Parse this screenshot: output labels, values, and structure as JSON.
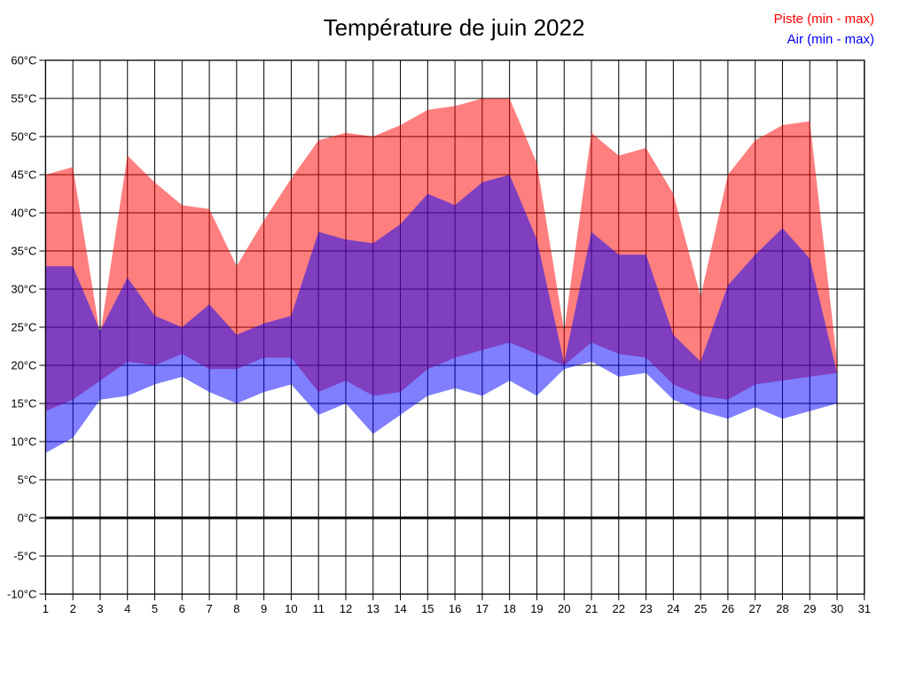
{
  "title": "Température de juin 2022",
  "legend": [
    {
      "label": "Piste (min - max)",
      "color": "#ff0000"
    },
    {
      "label": "Air (min - max)",
      "color": "#0000ff"
    }
  ],
  "chart_data": {
    "type": "area",
    "subtype": "min-max-range-bands",
    "x_label_unit": "day of month",
    "categories": [
      1,
      2,
      3,
      4,
      5,
      6,
      7,
      8,
      9,
      10,
      11,
      12,
      13,
      14,
      15,
      16,
      17,
      18,
      19,
      20,
      21,
      22,
      23,
      24,
      25,
      26,
      27,
      28,
      29,
      30,
      31
    ],
    "x_tick_labels": [
      "1",
      "2",
      "3",
      "4",
      "5",
      "6",
      "7",
      "8",
      "9",
      "10",
      "11",
      "12",
      "13",
      "14",
      "15",
      "16",
      "17",
      "18",
      "19",
      "20",
      "21",
      "22",
      "23",
      "24",
      "25",
      "26",
      "27",
      "28",
      "29",
      "30",
      "31"
    ],
    "y_tick_labels": [
      "60°C",
      "55°C",
      "50°C",
      "45°C",
      "40°C",
      "35°C",
      "30°C",
      "25°C",
      "20°C",
      "15°C",
      "10°C",
      "5°C",
      "0°C",
      "-5°C",
      "-10°C"
    ],
    "ylim": [
      -10,
      60
    ],
    "ytick_step": 5,
    "grid": true,
    "zero_line_thick": true,
    "legend_position": "top-right",
    "series": [
      {
        "name": "Piste (min - max)",
        "color": "#ff0000",
        "fill_opacity": 0.5,
        "min": [
          14,
          15.5,
          18,
          20.5,
          20,
          21.5,
          19.5,
          19.5,
          21,
          21,
          16.5,
          18,
          16,
          16.5,
          19.5,
          21,
          22,
          23,
          21.5,
          20,
          23,
          21.5,
          21,
          17.5,
          16,
          15.5,
          17.5,
          18,
          18.5,
          19,
          null
        ],
        "max": [
          45,
          46,
          24,
          47.5,
          44,
          41,
          40.5,
          33,
          39,
          44.5,
          49.5,
          50.5,
          50,
          51.5,
          53.5,
          54,
          55,
          55,
          46.5,
          24.5,
          50.5,
          47.5,
          48.5,
          42.5,
          29,
          45,
          49.5,
          51.5,
          52,
          20.5,
          null
        ]
      },
      {
        "name": "Air (min - max)",
        "color": "#0000ff",
        "fill_opacity": 0.5,
        "min": [
          8.5,
          10.5,
          15.5,
          16,
          17.5,
          18.5,
          16.5,
          15,
          16.5,
          17.5,
          13.5,
          15,
          11,
          13.5,
          16,
          17,
          16,
          18,
          16,
          19.5,
          20.5,
          18.5,
          19,
          15.5,
          14,
          13,
          14.5,
          13,
          14,
          15,
          null
        ],
        "max": [
          33,
          33,
          24.5,
          31.5,
          26.5,
          25,
          28,
          24,
          25.5,
          26.5,
          37.5,
          36.5,
          36,
          38.5,
          42.5,
          41,
          44,
          45,
          36.5,
          20.3,
          37.5,
          34.5,
          34.5,
          24,
          20.5,
          30.5,
          34.5,
          38,
          34,
          19,
          null
        ]
      }
    ]
  }
}
